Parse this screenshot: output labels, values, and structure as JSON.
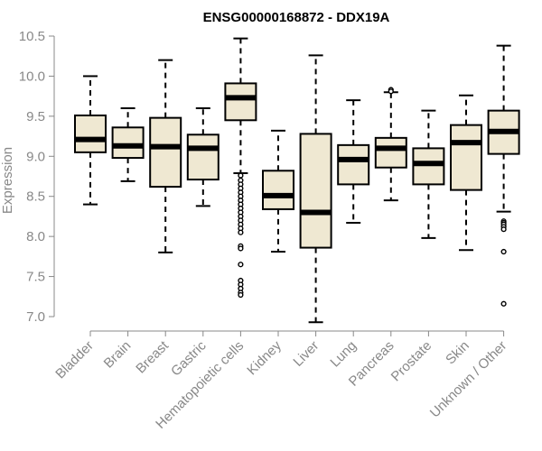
{
  "chart_data": {
    "type": "boxplot",
    "title": "ENSG00000168872 - DDX19A",
    "xlabel": "",
    "ylabel": "Expression",
    "ylim": [
      7.0,
      10.5
    ],
    "yticks": [
      7.0,
      7.5,
      8.0,
      8.5,
      9.0,
      9.5,
      10.0,
      10.5
    ],
    "ytick_labels": [
      "7.0",
      "7.5",
      "8.0",
      "8.5",
      "9.0",
      "9.5",
      "10.0",
      "10.5"
    ],
    "colors": {
      "box_fill": "#efe8d2",
      "box_stroke": "#000000",
      "median": "#000000",
      "axis": "#888888"
    },
    "categories": [
      "Bladder",
      "Brain",
      "Breast",
      "Gastric",
      "Hematopoietic cells",
      "Kidney",
      "Liver",
      "Lung",
      "Pancreas",
      "Prostate",
      "Skin",
      "Unknown / Other"
    ],
    "x_tick_labels": [
      "Bladder",
      "Brain",
      "Breast",
      "Gastric",
      "Hematopoietic cells",
      "Kidney",
      "Liver",
      "Lung",
      "Pancreas",
      "Prostate",
      "Skin",
      "Unknown / Other"
    ],
    "boxes": [
      {
        "name": "Bladder",
        "whisker_low": 8.4,
        "q1": 9.05,
        "median": 9.21,
        "q3": 9.51,
        "whisker_high": 10.0,
        "outliers": []
      },
      {
        "name": "Brain",
        "whisker_low": 8.69,
        "q1": 8.98,
        "median": 9.13,
        "q3": 9.36,
        "whisker_high": 9.6,
        "outliers": []
      },
      {
        "name": "Breast",
        "whisker_low": 7.8,
        "q1": 8.62,
        "median": 9.12,
        "q3": 9.48,
        "whisker_high": 10.2,
        "outliers": []
      },
      {
        "name": "Gastric",
        "whisker_low": 8.38,
        "q1": 8.71,
        "median": 9.1,
        "q3": 9.27,
        "whisker_high": 9.6,
        "outliers": []
      },
      {
        "name": "Hematopoietic cells",
        "whisker_low": 8.79,
        "q1": 9.45,
        "median": 9.73,
        "q3": 9.91,
        "whisker_high": 10.47,
        "outliers": [
          8.76,
          8.7,
          8.65,
          8.6,
          8.55,
          8.5,
          8.45,
          8.4,
          8.35,
          8.3,
          8.25,
          8.2,
          8.15,
          8.1,
          8.05,
          7.88,
          7.85,
          7.65,
          7.45,
          7.4,
          7.35,
          7.3,
          7.27
        ]
      },
      {
        "name": "Kidney",
        "whisker_low": 7.81,
        "q1": 8.34,
        "median": 8.51,
        "q3": 8.82,
        "whisker_high": 9.32,
        "outliers": []
      },
      {
        "name": "Liver",
        "whisker_low": 6.93,
        "q1": 7.86,
        "median": 8.3,
        "q3": 9.28,
        "whisker_high": 10.26,
        "outliers": []
      },
      {
        "name": "Lung",
        "whisker_low": 8.17,
        "q1": 8.65,
        "median": 8.96,
        "q3": 9.14,
        "whisker_high": 9.7,
        "outliers": []
      },
      {
        "name": "Pancreas",
        "whisker_low": 8.45,
        "q1": 8.86,
        "median": 9.1,
        "q3": 9.23,
        "whisker_high": 9.8,
        "outliers": [
          9.83,
          9.81
        ]
      },
      {
        "name": "Prostate",
        "whisker_low": 7.98,
        "q1": 8.65,
        "median": 8.91,
        "q3": 9.1,
        "whisker_high": 9.57,
        "outliers": []
      },
      {
        "name": "Skin",
        "whisker_low": 7.83,
        "q1": 8.58,
        "median": 9.17,
        "q3": 9.39,
        "whisker_high": 9.76,
        "outliers": []
      },
      {
        "name": "Unknown / Other",
        "whisker_low": 8.31,
        "q1": 9.03,
        "median": 9.31,
        "q3": 9.57,
        "whisker_high": 10.38,
        "outliers": [
          8.19,
          8.17,
          8.15,
          8.12,
          8.09,
          7.81,
          7.16
        ]
      }
    ]
  }
}
